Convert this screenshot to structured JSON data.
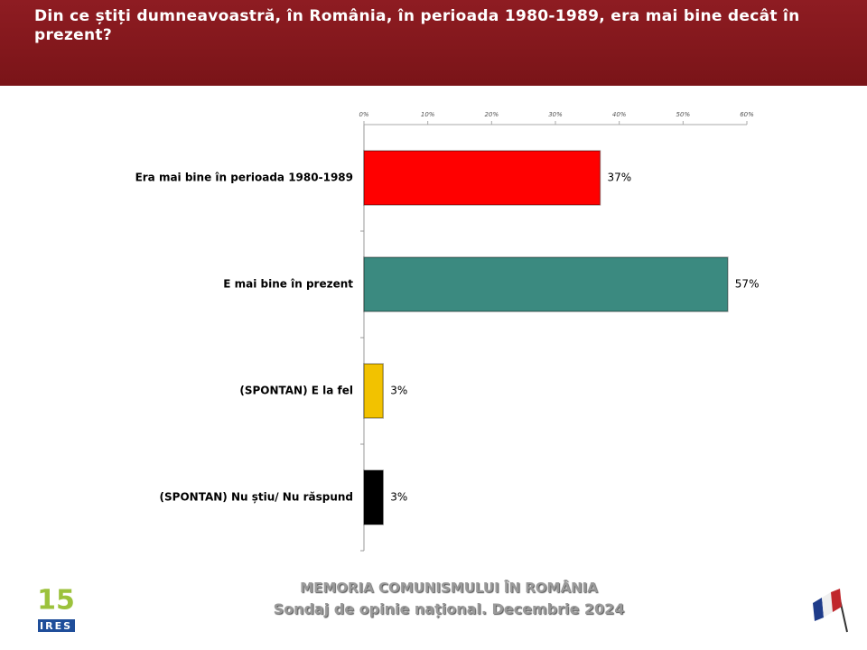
{
  "chart_data": {
    "type": "hbar",
    "title": "Din ce știți dumneavoastră, în România, în perioada 1980-1989, era mai bine decât în prezent?",
    "categories": [
      "Era mai bine în perioada 1980-1989",
      "E mai bine în prezent",
      "(SPONTAN) E la fel",
      "(SPONTAN) Nu știu/ Nu răspund"
    ],
    "values": [
      37,
      57,
      3,
      3
    ],
    "value_labels": [
      "37%",
      "57%",
      "3%",
      "3%"
    ],
    "colors": [
      "#ff0000",
      "#3b8a80",
      "#f2c200",
      "#000000"
    ],
    "xlim": [
      0,
      60
    ],
    "xticks": [
      {
        "value": 0,
        "label": "0%"
      },
      {
        "value": 10,
        "label": "10%"
      },
      {
        "value": 20,
        "label": "20%"
      },
      {
        "value": 30,
        "label": "30%"
      },
      {
        "value": 40,
        "label": "40%"
      },
      {
        "value": 50,
        "label": "50%"
      },
      {
        "value": 60,
        "label": "60%"
      }
    ],
    "grid": false
  },
  "footer": {
    "line1": "MEMORIA COMUNISMULUI ÎN ROMÂNIA",
    "line2": "Sondaj de opinie național. Decembrie 2024"
  },
  "logo": {
    "number": "15",
    "name": "IRES"
  }
}
